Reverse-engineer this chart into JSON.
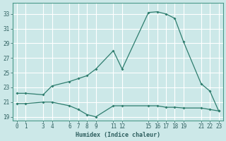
{
  "x_main": [
    0,
    1,
    3,
    4,
    6,
    7,
    8,
    9,
    11,
    12,
    15,
    16,
    17,
    18,
    19,
    21,
    22,
    23
  ],
  "y_main": [
    22.2,
    22.2,
    22.0,
    23.2,
    23.8,
    24.2,
    24.6,
    25.5,
    28.0,
    25.5,
    33.2,
    33.3,
    33.0,
    32.4,
    29.2,
    23.5,
    22.5,
    19.8
  ],
  "x_lower": [
    0,
    1,
    3,
    4,
    6,
    7,
    8,
    9,
    11,
    12,
    15,
    16,
    17,
    18,
    19,
    21,
    22,
    23
  ],
  "y_lower": [
    20.8,
    20.8,
    21.0,
    21.0,
    20.5,
    20.0,
    19.3,
    19.0,
    20.5,
    20.5,
    20.5,
    20.5,
    20.3,
    20.3,
    20.2,
    20.2,
    20.0,
    19.8
  ],
  "yticks": [
    19,
    21,
    23,
    25,
    27,
    29,
    31,
    33
  ],
  "xticks": [
    0,
    1,
    3,
    4,
    6,
    7,
    8,
    9,
    11,
    12,
    15,
    16,
    17,
    18,
    19,
    21,
    22,
    23
  ],
  "xtick_labels": [
    "0",
    "1",
    "3",
    "4",
    "6",
    "7",
    "8",
    "9",
    "11",
    "12",
    "15",
    "16",
    "17",
    "18",
    "19",
    "21",
    "22",
    "23"
  ],
  "xlabel": "Humidex (Indice chaleur)",
  "line_color": "#2e7d6e",
  "bg_color": "#cce8e8",
  "grid_color": "#ffffff",
  "ylim": [
    18.5,
    34.5
  ],
  "xlim": [
    -0.5,
    23.5
  ]
}
